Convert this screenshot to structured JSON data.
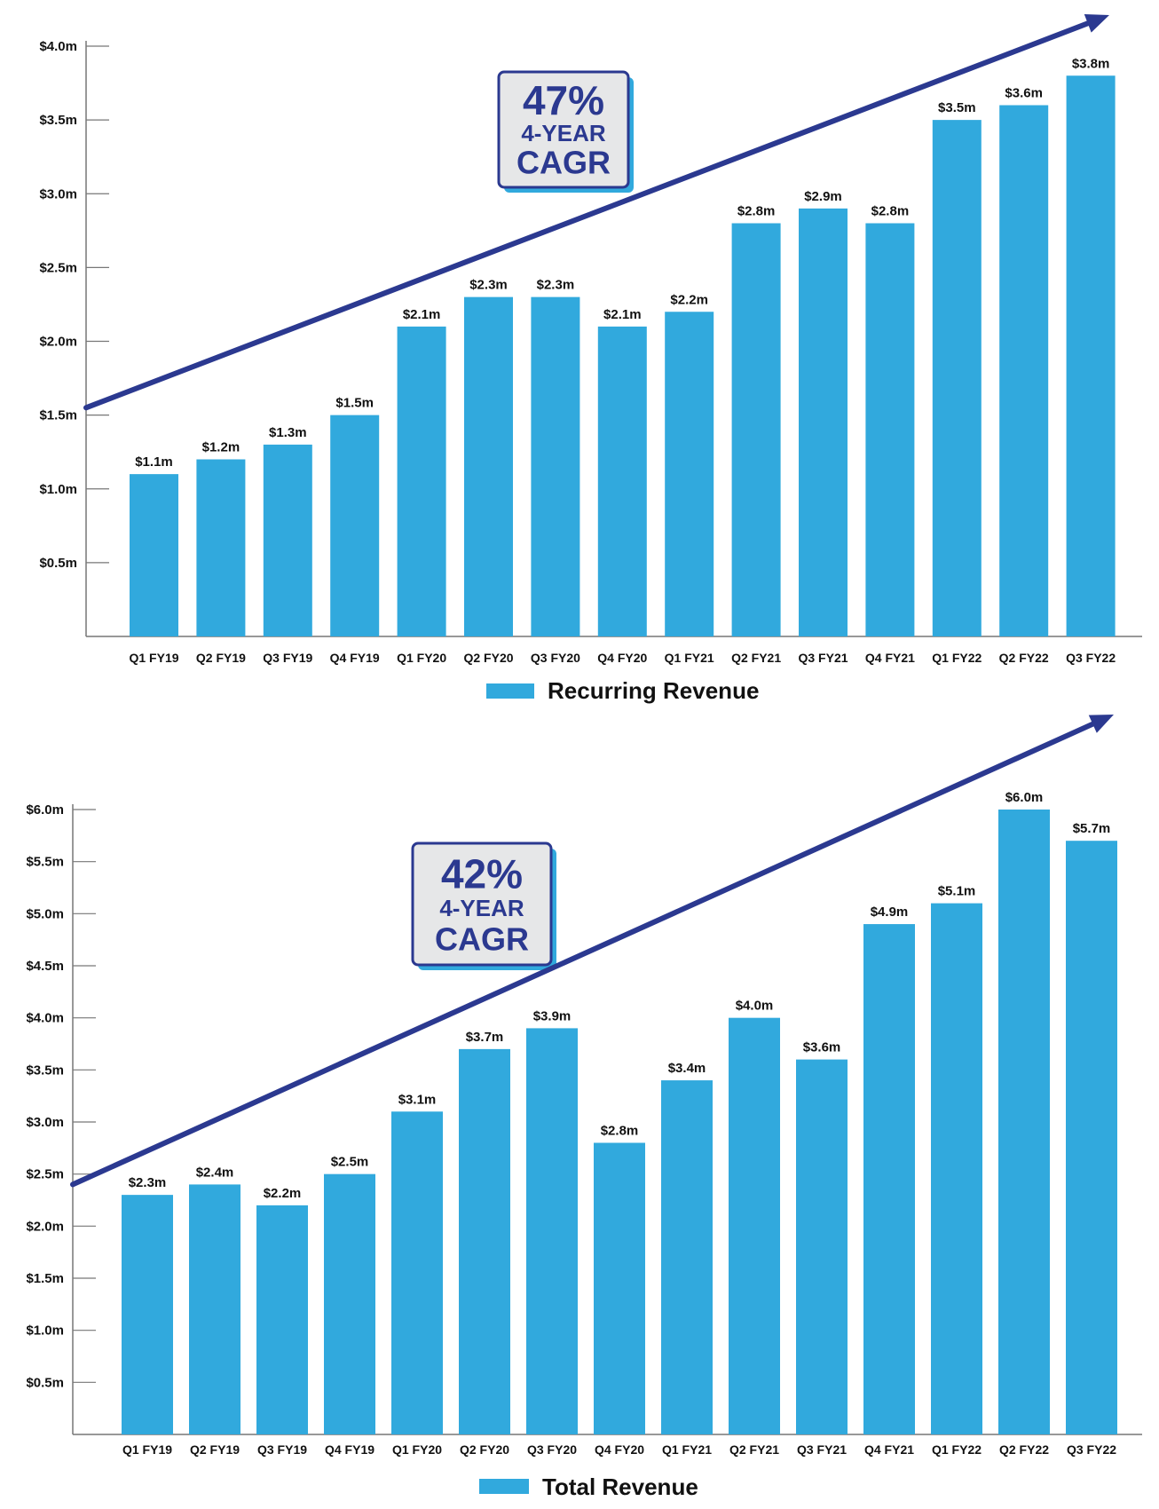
{
  "colors": {
    "bar": "#31a9dd",
    "arrow": "#2b3990",
    "badge_bg": "#e6e7e8",
    "axis": "#777777"
  },
  "chart_data": [
    {
      "type": "bar",
      "categories": [
        "Q1 FY19",
        "Q2 FY19",
        "Q3 FY19",
        "Q4 FY19",
        "Q1 FY20",
        "Q2 FY20",
        "Q3 FY20",
        "Q4 FY20",
        "Q1 FY21",
        "Q2 FY21",
        "Q3 FY21",
        "Q4 FY21",
        "Q1 FY22",
        "Q2 FY22",
        "Q3 FY22"
      ],
      "series": [
        {
          "name": "Recurring Revenue",
          "values": [
            1.1,
            1.2,
            1.3,
            1.5,
            2.1,
            2.3,
            2.3,
            2.1,
            2.2,
            2.8,
            2.9,
            2.8,
            3.5,
            3.6,
            3.8
          ]
        }
      ],
      "data_labels": [
        "$1.1m",
        "$1.2m",
        "$1.3m",
        "$1.5m",
        "$2.1m",
        "$2.3m",
        "$2.3m",
        "$2.1m",
        "$2.2m",
        "$2.8m",
        "$2.9m",
        "$2.8m",
        "$3.5m",
        "$3.6m",
        "$3.8m"
      ],
      "yticks": [
        0.5,
        1.0,
        1.5,
        2.0,
        2.5,
        3.0,
        3.5,
        4.0
      ],
      "ytick_labels": [
        "$0.5m",
        "$1.0m",
        "$1.5m",
        "$2.0m",
        "$2.5m",
        "$3.0m",
        "$3.5m",
        "$4.0m"
      ],
      "ylim": [
        0,
        4.0
      ],
      "ylabel": "",
      "xlabel": "",
      "legend": "bottom",
      "trend_arrow_start": 1.55,
      "badge": {
        "pct": "47%",
        "line2": "4-YEAR",
        "line3": "CAGR"
      }
    },
    {
      "type": "bar",
      "categories": [
        "Q1 FY19",
        "Q2 FY19",
        "Q3 FY19",
        "Q4 FY19",
        "Q1 FY20",
        "Q2 FY20",
        "Q3 FY20",
        "Q4 FY20",
        "Q1 FY21",
        "Q2 FY21",
        "Q3 FY21",
        "Q4 FY21",
        "Q1 FY22",
        "Q2 FY22",
        "Q3 FY22"
      ],
      "series": [
        {
          "name": "Total Revenue",
          "values": [
            2.3,
            2.4,
            2.2,
            2.5,
            3.1,
            3.7,
            3.9,
            2.8,
            3.4,
            4.0,
            3.6,
            4.9,
            5.1,
            6.0,
            5.7
          ]
        }
      ],
      "data_labels": [
        "$2.3m",
        "$2.4m",
        "$2.2m",
        "$2.5m",
        "$3.1m",
        "$3.7m",
        "$3.9m",
        "$2.8m",
        "$3.4m",
        "$4.0m",
        "$3.6m",
        "$4.9m",
        "$5.1m",
        "$6.0m",
        "$5.7m"
      ],
      "yticks": [
        0.5,
        1.0,
        1.5,
        2.0,
        2.5,
        3.0,
        3.5,
        4.0,
        4.5,
        5.0,
        5.5,
        6.0
      ],
      "ytick_labels": [
        "$0.5m",
        "$1.0m",
        "$1.5m",
        "$2.0m",
        "$2.5m",
        "$3.0m",
        "$3.5m",
        "$4.0m",
        "$4.5m",
        "$5.0m",
        "$5.5m",
        "$6.0m"
      ],
      "ylim": [
        0,
        6.0
      ],
      "ylabel": "",
      "xlabel": "",
      "legend": "bottom",
      "trend_arrow_start": 2.4,
      "badge": {
        "pct": "42%",
        "line2": "4-YEAR",
        "line3": "CAGR"
      }
    }
  ]
}
